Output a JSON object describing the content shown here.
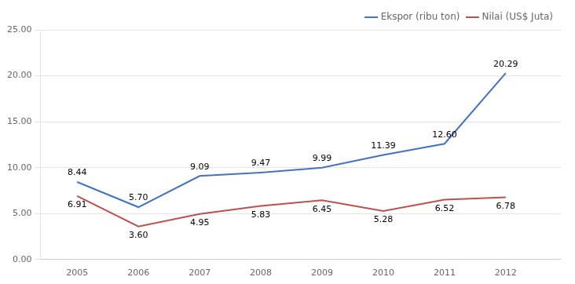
{
  "chart_data": {
    "type": "line",
    "x": [
      2005,
      2006,
      2007,
      2008,
      2009,
      2010,
      2011,
      2012
    ],
    "series": [
      {
        "name": "Ekspor (ribu ton)",
        "color": "#4472C4",
        "values": [
          8.44,
          5.7,
          9.09,
          9.47,
          9.99,
          11.39,
          12.6,
          20.29
        ],
        "value_labels": [
          "8.44",
          "5.70",
          "9.09",
          "9.47",
          "9.99",
          "11.39",
          "12.60",
          "20.29"
        ]
      },
      {
        "name": "Nilai (US$ Juta)",
        "color": "#C0504D",
        "values": [
          6.91,
          3.6,
          4.95,
          5.83,
          6.45,
          5.28,
          6.52,
          6.78
        ],
        "value_labels": [
          "6.91",
          "3.60",
          "4.95",
          "5.83",
          "6.45",
          "5.28",
          "6.52",
          "6.78"
        ]
      }
    ],
    "xlim": [
      2004.4,
      2012.9
    ],
    "xticks": [
      2005,
      2006,
      2007,
      2008,
      2009,
      2010,
      2011,
      2012
    ],
    "ylim": [
      0.0,
      25.0
    ],
    "yticks": [
      {
        "value": 0,
        "label": "0.00"
      },
      {
        "value": 5,
        "label": "5.00"
      },
      {
        "value": 10,
        "label": "10.00"
      },
      {
        "value": 15,
        "label": "15.00"
      },
      {
        "value": 20,
        "label": "20.00"
      },
      {
        "value": 25,
        "label": "25.00"
      }
    ],
    "grid": "y",
    "legend": "upper right",
    "data_labels": true
  }
}
